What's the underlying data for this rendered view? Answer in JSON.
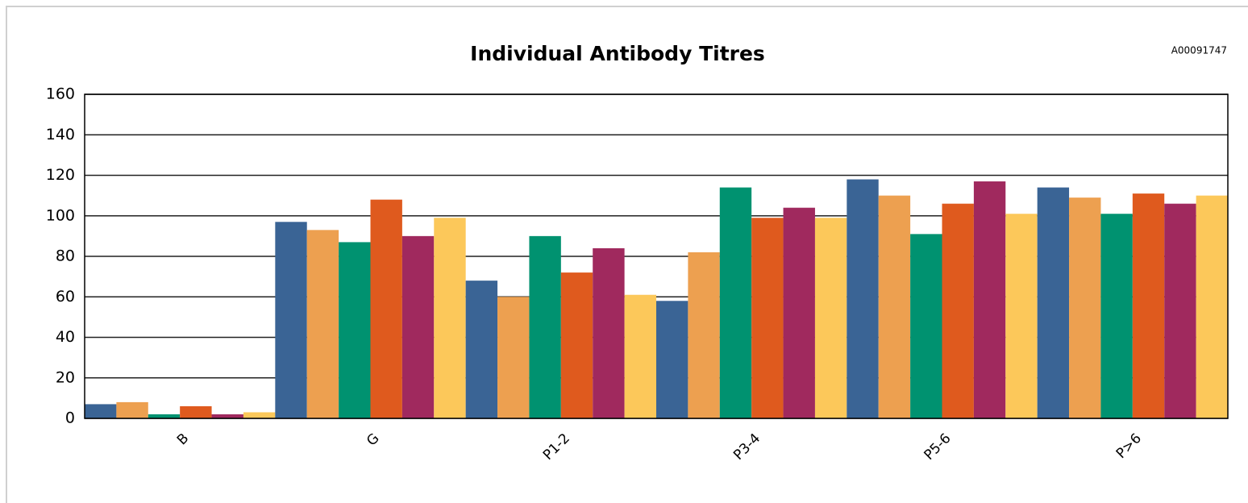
{
  "chart_data": {
    "type": "bar",
    "title": "Individual Antibody Titres",
    "annotation": "A00091747",
    "categories": [
      "B",
      "G",
      "P1-2",
      "P3-4",
      "P5-6",
      "P>6"
    ],
    "series": [
      {
        "color": "#3a6495",
        "values": [
          7,
          97,
          68,
          58,
          118,
          114
        ]
      },
      {
        "color": "#eda050",
        "values": [
          8,
          93,
          60,
          82,
          110,
          109
        ]
      },
      {
        "color": "#009270",
        "values": [
          2,
          87,
          90,
          114,
          91,
          101
        ]
      },
      {
        "color": "#df5a1e",
        "values": [
          6,
          108,
          72,
          99,
          106,
          111
        ]
      },
      {
        "color": "#a0295e",
        "values": [
          2,
          90,
          84,
          104,
          117,
          106
        ]
      },
      {
        "color": "#fcc85a",
        "values": [
          3,
          99,
          61,
          99,
          101,
          110
        ]
      }
    ],
    "ylim": [
      0,
      160
    ],
    "yticks": [
      0,
      20,
      40,
      60,
      80,
      100,
      120,
      140,
      160
    ],
    "grid": true
  }
}
